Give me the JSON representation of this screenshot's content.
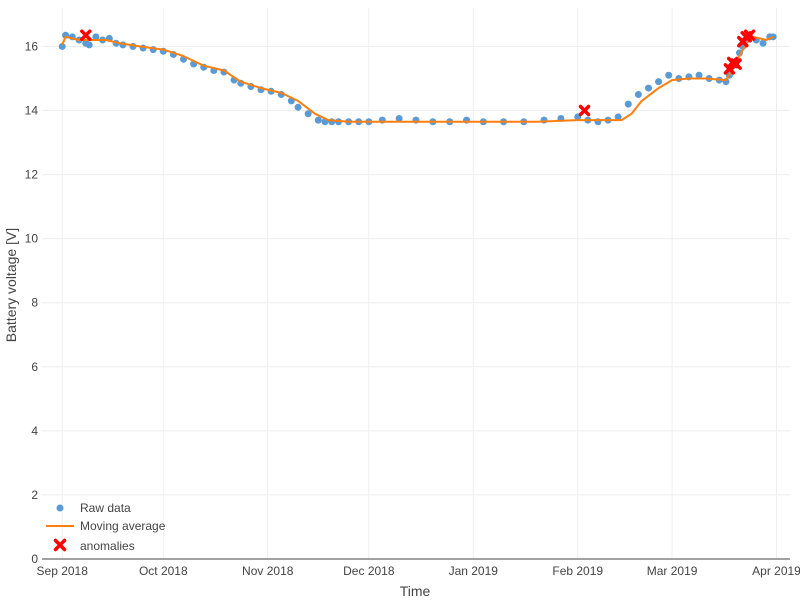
{
  "chart_data": {
    "type": "line",
    "title": "",
    "xlabel": "Time",
    "ylabel": "Battery voltage [V]",
    "x_axis": {
      "type": "date",
      "range": [
        "2018-08-26",
        "2019-04-05"
      ],
      "tick_dates": [
        "2018-09-01",
        "2018-10-01",
        "2018-11-01",
        "2018-12-01",
        "2019-01-01",
        "2019-02-01",
        "2019-03-01",
        "2019-04-01"
      ],
      "tick_labels": [
        "Sep 2018",
        "Oct 2018",
        "Nov 2018",
        "Dec 2018",
        "Jan 2019",
        "Feb 2019",
        "Mar 2019",
        "Apr 2019"
      ]
    },
    "ylim": [
      0,
      17.2
    ],
    "y_ticks": [
      0,
      2,
      4,
      6,
      8,
      10,
      12,
      14,
      16
    ],
    "grid": true,
    "legend_position": "bottom-left",
    "series": [
      {
        "name": "Raw data",
        "kind": "markers",
        "color": "#5b9bd5",
        "x": [
          "2018-09-01",
          "2018-09-02",
          "2018-09-04",
          "2018-09-06",
          "2018-09-08",
          "2018-09-09",
          "2018-09-11",
          "2018-09-13",
          "2018-09-15",
          "2018-09-17",
          "2018-09-19",
          "2018-09-22",
          "2018-09-25",
          "2018-09-28",
          "2018-10-01",
          "2018-10-04",
          "2018-10-07",
          "2018-10-10",
          "2018-10-13",
          "2018-10-16",
          "2018-10-19",
          "2018-10-22",
          "2018-10-24",
          "2018-10-27",
          "2018-10-30",
          "2018-11-02",
          "2018-11-05",
          "2018-11-08",
          "2018-11-10",
          "2018-11-13",
          "2018-11-16",
          "2018-11-18",
          "2018-11-20",
          "2018-11-22",
          "2018-11-25",
          "2018-11-28",
          "2018-12-01",
          "2018-12-05",
          "2018-12-10",
          "2018-12-15",
          "2018-12-20",
          "2018-12-25",
          "2018-12-30",
          "2019-01-04",
          "2019-01-10",
          "2019-01-16",
          "2019-01-22",
          "2019-01-27",
          "2019-02-01",
          "2019-02-04",
          "2019-02-07",
          "2019-02-10",
          "2019-02-13",
          "2019-02-16",
          "2019-02-19",
          "2019-02-22",
          "2019-02-25",
          "2019-02-28",
          "2019-03-03",
          "2019-03-06",
          "2019-03-09",
          "2019-03-12",
          "2019-03-15",
          "2019-03-17",
          "2019-03-18",
          "2019-03-19",
          "2019-03-20",
          "2019-03-21",
          "2019-03-22",
          "2019-03-23",
          "2019-03-24",
          "2019-03-26",
          "2019-03-28",
          "2019-03-30",
          "2019-03-31"
        ],
        "y": [
          16.0,
          16.35,
          16.3,
          16.2,
          16.1,
          16.05,
          16.3,
          16.2,
          16.25,
          16.1,
          16.05,
          16.0,
          15.95,
          15.9,
          15.85,
          15.75,
          15.6,
          15.45,
          15.35,
          15.25,
          15.2,
          14.95,
          14.85,
          14.75,
          14.65,
          14.6,
          14.5,
          14.3,
          14.1,
          13.9,
          13.7,
          13.65,
          13.65,
          13.65,
          13.65,
          13.65,
          13.65,
          13.7,
          13.75,
          13.7,
          13.65,
          13.65,
          13.7,
          13.65,
          13.65,
          13.65,
          13.7,
          13.75,
          13.8,
          13.7,
          13.65,
          13.7,
          13.8,
          14.2,
          14.5,
          14.7,
          14.9,
          15.1,
          15.0,
          15.05,
          15.1,
          15.0,
          14.95,
          14.9,
          15.1,
          15.4,
          15.5,
          15.8,
          16.0,
          16.2,
          16.3,
          16.2,
          16.1,
          16.3,
          16.3
        ]
      },
      {
        "name": "Moving average",
        "kind": "line",
        "color": "#ff7f0e",
        "x": [
          "2018-09-01",
          "2018-09-02",
          "2018-09-06",
          "2018-09-10",
          "2018-09-14",
          "2018-09-18",
          "2018-09-24",
          "2018-10-01",
          "2018-10-07",
          "2018-10-13",
          "2018-10-19",
          "2018-10-24",
          "2018-10-30",
          "2018-11-05",
          "2018-11-10",
          "2018-11-15",
          "2018-11-19",
          "2018-11-25",
          "2018-12-05",
          "2018-12-20",
          "2019-01-05",
          "2019-01-20",
          "2019-02-01",
          "2019-02-08",
          "2019-02-14",
          "2019-02-17",
          "2019-02-20",
          "2019-02-25",
          "2019-03-01",
          "2019-03-06",
          "2019-03-11",
          "2019-03-17",
          "2019-03-19",
          "2019-03-21",
          "2019-03-23",
          "2019-03-25",
          "2019-03-29",
          "2019-03-31"
        ],
        "y": [
          16.05,
          16.3,
          16.2,
          16.2,
          16.2,
          16.1,
          16.0,
          15.9,
          15.7,
          15.4,
          15.25,
          14.9,
          14.7,
          14.55,
          14.3,
          13.9,
          13.7,
          13.65,
          13.65,
          13.65,
          13.65,
          13.65,
          13.7,
          13.7,
          13.7,
          13.9,
          14.3,
          14.7,
          14.95,
          15.0,
          15.0,
          14.95,
          15.3,
          15.7,
          16.1,
          16.3,
          16.2,
          16.3
        ]
      },
      {
        "name": "anomalies",
        "kind": "markers",
        "color": "#ff0000",
        "x": [
          "2018-09-08",
          "2019-02-03",
          "2019-03-18",
          "2019-03-19",
          "2019-03-20",
          "2019-03-22",
          "2019-03-23",
          "2019-03-24"
        ],
        "y": [
          16.35,
          14.0,
          15.3,
          15.5,
          15.45,
          16.15,
          16.3,
          16.35
        ]
      }
    ]
  }
}
